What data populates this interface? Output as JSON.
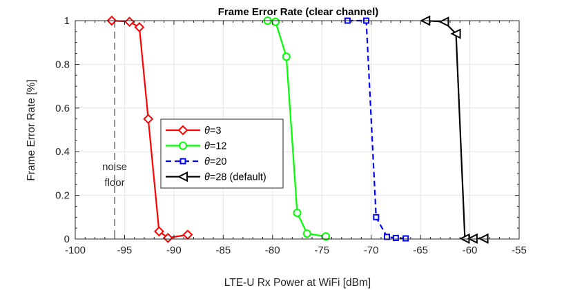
{
  "chart_data": {
    "type": "line",
    "title": "Frame Error Rate (clear channel)",
    "xlabel": "LTE-U Rx Power at WiFi [dBm]",
    "ylabel": "Frame Error Rate [%]",
    "xlim": [
      -100,
      -55
    ],
    "ylim": [
      0,
      1
    ],
    "xticks": [
      -100,
      -95,
      -90,
      -85,
      -80,
      -75,
      -70,
      -65,
      -60,
      -55
    ],
    "yticks": [
      0,
      0.2,
      0.4,
      0.6,
      0.8,
      1
    ],
    "grid": true,
    "legend_position": "center-left",
    "series": [
      {
        "name": "θ=3",
        "theta": "3",
        "suffix": "",
        "color": "#ff0000",
        "marker": "diamond",
        "dash": "solid",
        "x": [
          -96.3,
          -94.5,
          -93.5,
          -92.6,
          -91.5,
          -90.6,
          -88.6
        ],
        "y": [
          1.0,
          0.995,
          0.97,
          0.55,
          0.035,
          0.005,
          0.02
        ]
      },
      {
        "name": "θ=12",
        "theta": "12",
        "suffix": "",
        "color": "#00ff00",
        "marker": "circle",
        "dash": "solid",
        "x": [
          -80.5,
          -79.7,
          -78.6,
          -77.5,
          -76.5,
          -74.6
        ],
        "y": [
          1.0,
          0.995,
          0.835,
          0.12,
          0.025,
          0.012
        ]
      },
      {
        "name": "θ=20",
        "theta": "20",
        "suffix": "",
        "color": "#0000ff",
        "marker": "square",
        "dash": "dashed",
        "x": [
          -72.4,
          -70.5,
          -69.5,
          -68.4,
          -67.5,
          -66.5
        ],
        "y": [
          1.0,
          1.0,
          0.1,
          0.01,
          0.005,
          0.003
        ]
      },
      {
        "name": "θ=28 (default)",
        "theta": "28",
        "suffix": " (default)",
        "color": "#000000",
        "marker": "triangle-left",
        "dash": "solid",
        "x": [
          -64.5,
          -62.6,
          -61.4,
          -60.5,
          -59.7,
          -58.6
        ],
        "y": [
          1.0,
          0.995,
          0.94,
          0.002,
          0.002,
          0.002
        ]
      }
    ],
    "annotations": [
      {
        "kind": "vertical-dashed-line",
        "x": -96,
        "color": "#404040"
      },
      {
        "kind": "text",
        "lines": [
          "noise",
          "floor"
        ]
      }
    ]
  }
}
